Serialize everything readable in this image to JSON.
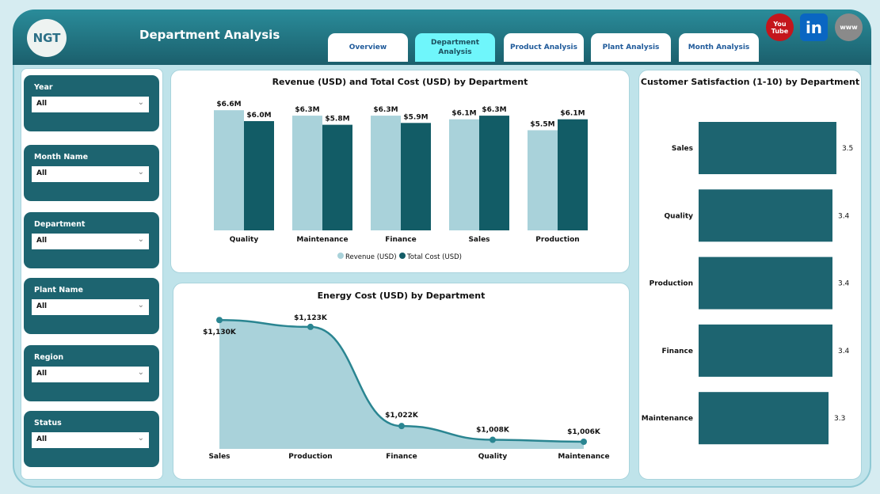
{
  "header": {
    "title": "Department Analysis",
    "logo_text": "NGT",
    "tabs": [
      {
        "label": "Overview"
      },
      {
        "label": "Department Analysis",
        "active": true
      },
      {
        "label": "Product Analysis"
      },
      {
        "label": "Plant Analysis"
      },
      {
        "label": "Month Analysis"
      }
    ],
    "social": [
      {
        "icon": "youtube-icon",
        "label": "You Tube",
        "color": "#c4161c"
      },
      {
        "icon": "linkedin-icon",
        "label": "in",
        "color": "#0a66c2"
      },
      {
        "icon": "globe-icon",
        "label": "www",
        "color": "#8a8a8a"
      }
    ]
  },
  "filters": [
    {
      "label": "Year",
      "value": "All"
    },
    {
      "label": "Month Name",
      "value": "All"
    },
    {
      "label": "Department",
      "value": "All"
    },
    {
      "label": "Plant Name",
      "value": "All"
    },
    {
      "label": "Region",
      "value": "All"
    },
    {
      "label": "Status",
      "value": "All"
    }
  ],
  "colors": {
    "revenue": "#a9d2da",
    "cost": "#125c66",
    "energy_line": "#2a8591",
    "energy_area": "#a9d2da",
    "satisfaction": "#1d6470"
  },
  "chart_data": [
    {
      "type": "bar",
      "title": "Revenue (USD) and Total Cost (USD) by Department",
      "categories": [
        "Quality",
        "Maintenance",
        "Finance",
        "Sales",
        "Production"
      ],
      "series": [
        {
          "name": "Revenue (USD)",
          "values": [
            6.6,
            6.3,
            6.3,
            6.1,
            5.5
          ],
          "labels": [
            "$6.6M",
            "$6.3M",
            "$6.3M",
            "$6.1M",
            "$5.5M"
          ]
        },
        {
          "name": "Total Cost (USD)",
          "values": [
            6.0,
            5.8,
            5.9,
            6.3,
            6.1
          ],
          "labels": [
            "$6.0M",
            "$5.8M",
            "$5.9M",
            "$6.3M",
            "$6.1M"
          ]
        }
      ],
      "unit": "M USD",
      "legend": "bottom"
    },
    {
      "type": "area",
      "title": "Energy Cost (USD) by Department",
      "categories": [
        "Sales",
        "Production",
        "Finance",
        "Quality",
        "Maintenance"
      ],
      "values": [
        1130,
        1123,
        1022,
        1008,
        1006
      ],
      "labels": [
        "$1,130K",
        "$1,123K",
        "$1,022K",
        "$1,008K",
        "$1,006K"
      ],
      "unit": "K USD"
    },
    {
      "type": "bar",
      "orientation": "horizontal",
      "title": "Customer Satisfaction (1-10) by Department",
      "categories": [
        "Sales",
        "Quality",
        "Production",
        "Finance",
        "Maintenance"
      ],
      "values": [
        3.5,
        3.4,
        3.4,
        3.4,
        3.3
      ],
      "labels": [
        "3.5",
        "3.4",
        "3.4",
        "3.4",
        "3.3"
      ]
    }
  ]
}
